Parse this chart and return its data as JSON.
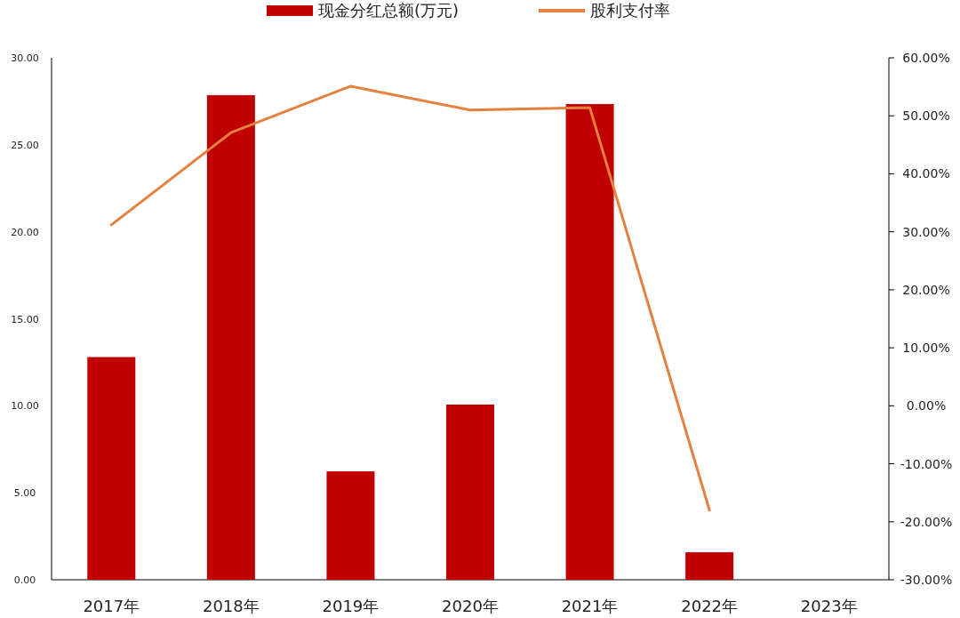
{
  "chart_data": {
    "type": "bar",
    "categories": [
      "2017年",
      "2018年",
      "2019年",
      "2020年",
      "2021年",
      "2022年",
      "2023年"
    ],
    "series": [
      {
        "name": "现金分红总额(万元)",
        "color": "#c00000",
        "values": [
          12.8,
          27.85,
          6.23,
          10.07,
          27.34,
          1.58,
          null
        ]
      },
      {
        "name": "股利支付率",
        "type": "line",
        "axis": "y2",
        "color": "#e5813f",
        "values": [
          31.2,
          47.1,
          55.1,
          51.0,
          51.4,
          -18.0,
          null
        ]
      }
    ],
    "ylim": [
      0,
      30
    ],
    "yticks": [
      {
        "value": 0,
        "label": "0.00"
      },
      {
        "value": 5,
        "label": "5.00"
      },
      {
        "value": 10,
        "label": "10.00"
      },
      {
        "value": 15,
        "label": "15.00"
      },
      {
        "value": 20,
        "label": "20.00"
      },
      {
        "value": 25,
        "label": "25.00"
      },
      {
        "value": 30,
        "label": "30.00"
      }
    ],
    "y2lim": [
      -30,
      60
    ],
    "y2ticks": [
      {
        "value": -30,
        "label": "-30.00%"
      },
      {
        "value": -20,
        "label": "-20.00%"
      },
      {
        "value": -10,
        "label": "-10.00%"
      },
      {
        "value": 0,
        "label": "0.00%"
      },
      {
        "value": 10,
        "label": "10.00%"
      },
      {
        "value": 20,
        "label": "20.00%"
      },
      {
        "value": 30,
        "label": "30.00%"
      },
      {
        "value": 40,
        "label": "40.00%"
      },
      {
        "value": 50,
        "label": "50.00%"
      },
      {
        "value": 60,
        "label": "60.00%"
      }
    ],
    "grid": false,
    "legend": "top"
  }
}
